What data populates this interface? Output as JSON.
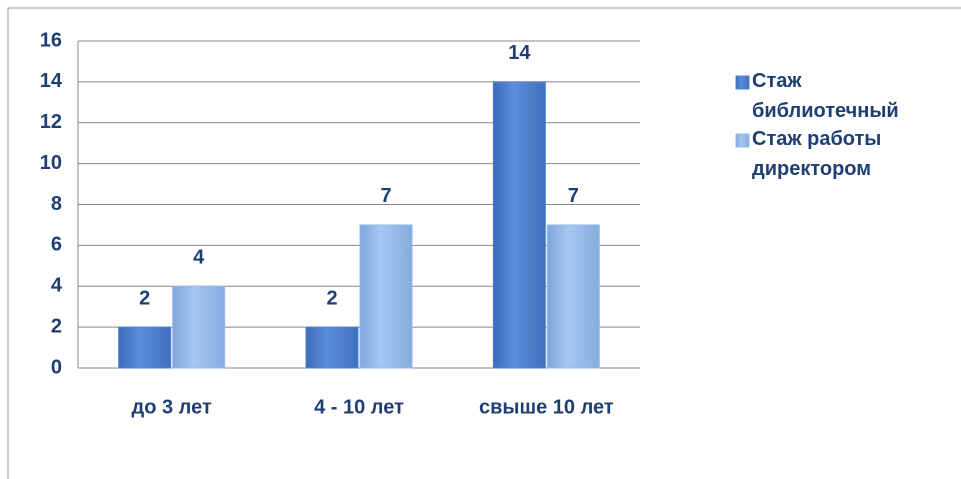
{
  "chart_data": {
    "type": "bar",
    "categories": [
      "до 3 лет",
      "4 - 10 лет",
      "свыше 10 лет"
    ],
    "series": [
      {
        "name": "Стаж библиотечный",
        "color": "#4f81d0",
        "values": [
          2,
          2,
          14
        ]
      },
      {
        "name": "Стаж работы директором",
        "color": "#95b9e9",
        "values": [
          4,
          7,
          7
        ]
      }
    ],
    "ylim": [
      0,
      16
    ],
    "yticks": [
      0,
      2,
      4,
      6,
      8,
      10,
      12,
      14,
      16
    ],
    "grid": true,
    "legend": "right"
  }
}
